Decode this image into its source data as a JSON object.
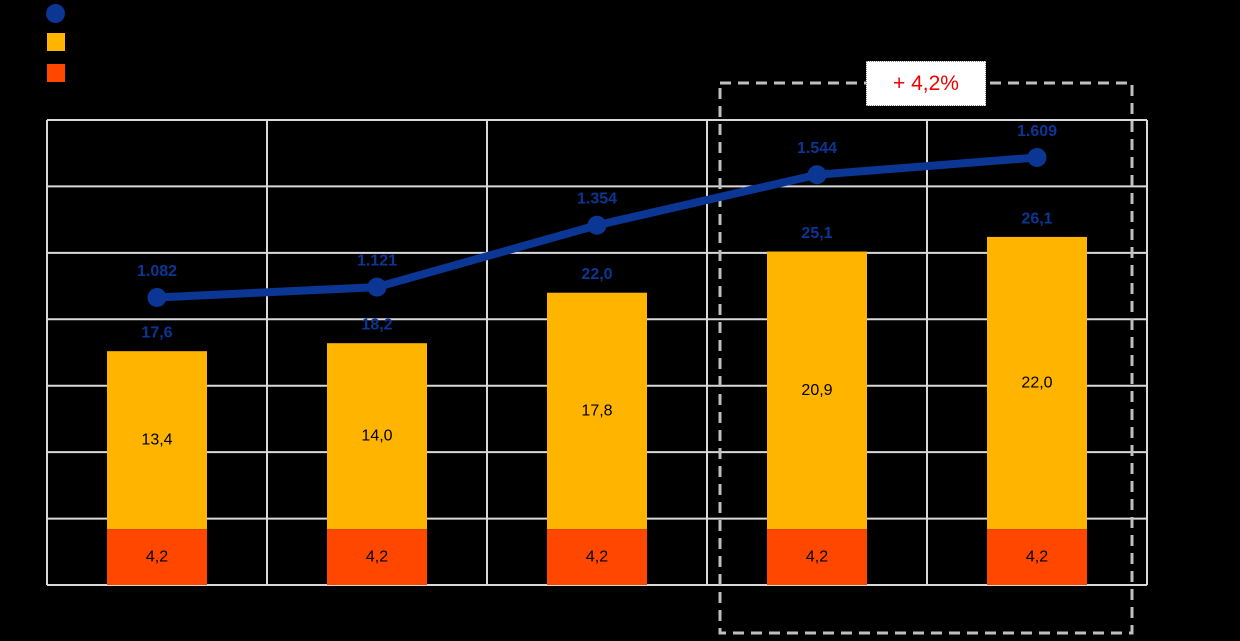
{
  "background_color": "#000000",
  "legend": {
    "items": [
      {
        "name": "line-series-marker",
        "shape": "circle",
        "color": "#0B3694",
        "label": ""
      },
      {
        "name": "upper-segment-marker",
        "shape": "square",
        "color": "#FFB400",
        "label": ""
      },
      {
        "name": "lower-segment-marker",
        "shape": "square",
        "color": "#FF4700",
        "label": ""
      }
    ]
  },
  "chart_data": {
    "type": "combo",
    "categories": [
      "",
      "",
      "",
      "",
      ""
    ],
    "series": [
      {
        "name": "total-line",
        "type": "line",
        "axis": "right",
        "color": "#0B3694",
        "values": [
          1082,
          1121,
          1354,
          1544,
          1609
        ],
        "labels": [
          "1.082",
          "1.121",
          "1.354",
          "1.544",
          "1.609"
        ]
      },
      {
        "name": "upper-bar-segment",
        "type": "bar",
        "axis": "left",
        "color": "#FFB400",
        "values": [
          13.4,
          14.0,
          17.8,
          20.9,
          22.0
        ],
        "labels": [
          "13,4",
          "14,0",
          "17,8",
          "20,9",
          "22,0"
        ]
      },
      {
        "name": "lower-bar-segment",
        "type": "bar",
        "axis": "left",
        "color": "#FF4700",
        "values": [
          4.2,
          4.2,
          4.2,
          4.2,
          4.2
        ],
        "labels": [
          "4,2",
          "4,2",
          "4,2",
          "4,2",
          "4,2"
        ]
      }
    ],
    "stack_totals": {
      "values": [
        17.6,
        18.2,
        22.0,
        25.1,
        26.1
      ],
      "labels": [
        "17,6",
        "18,2",
        "22,0",
        "25,1",
        "26,1"
      ]
    },
    "axes": {
      "left": {
        "min": 0,
        "max": 35,
        "step": 5,
        "labels_visible": false
      },
      "right": {
        "min": 0,
        "max": 1750,
        "step": 250,
        "labels_visible": false
      }
    },
    "grid": {
      "rows": 7,
      "cols": 5,
      "color": "#D9D9D9"
    },
    "highlight": {
      "label": "+ 4,2%",
      "label_color": "#EE0000",
      "box_color": "#BFBFBF",
      "start_index": 3,
      "end_index": 4
    },
    "label_colors": {
      "line": "#0B3694",
      "totals": "#0B3694",
      "segments": "#000000"
    }
  }
}
